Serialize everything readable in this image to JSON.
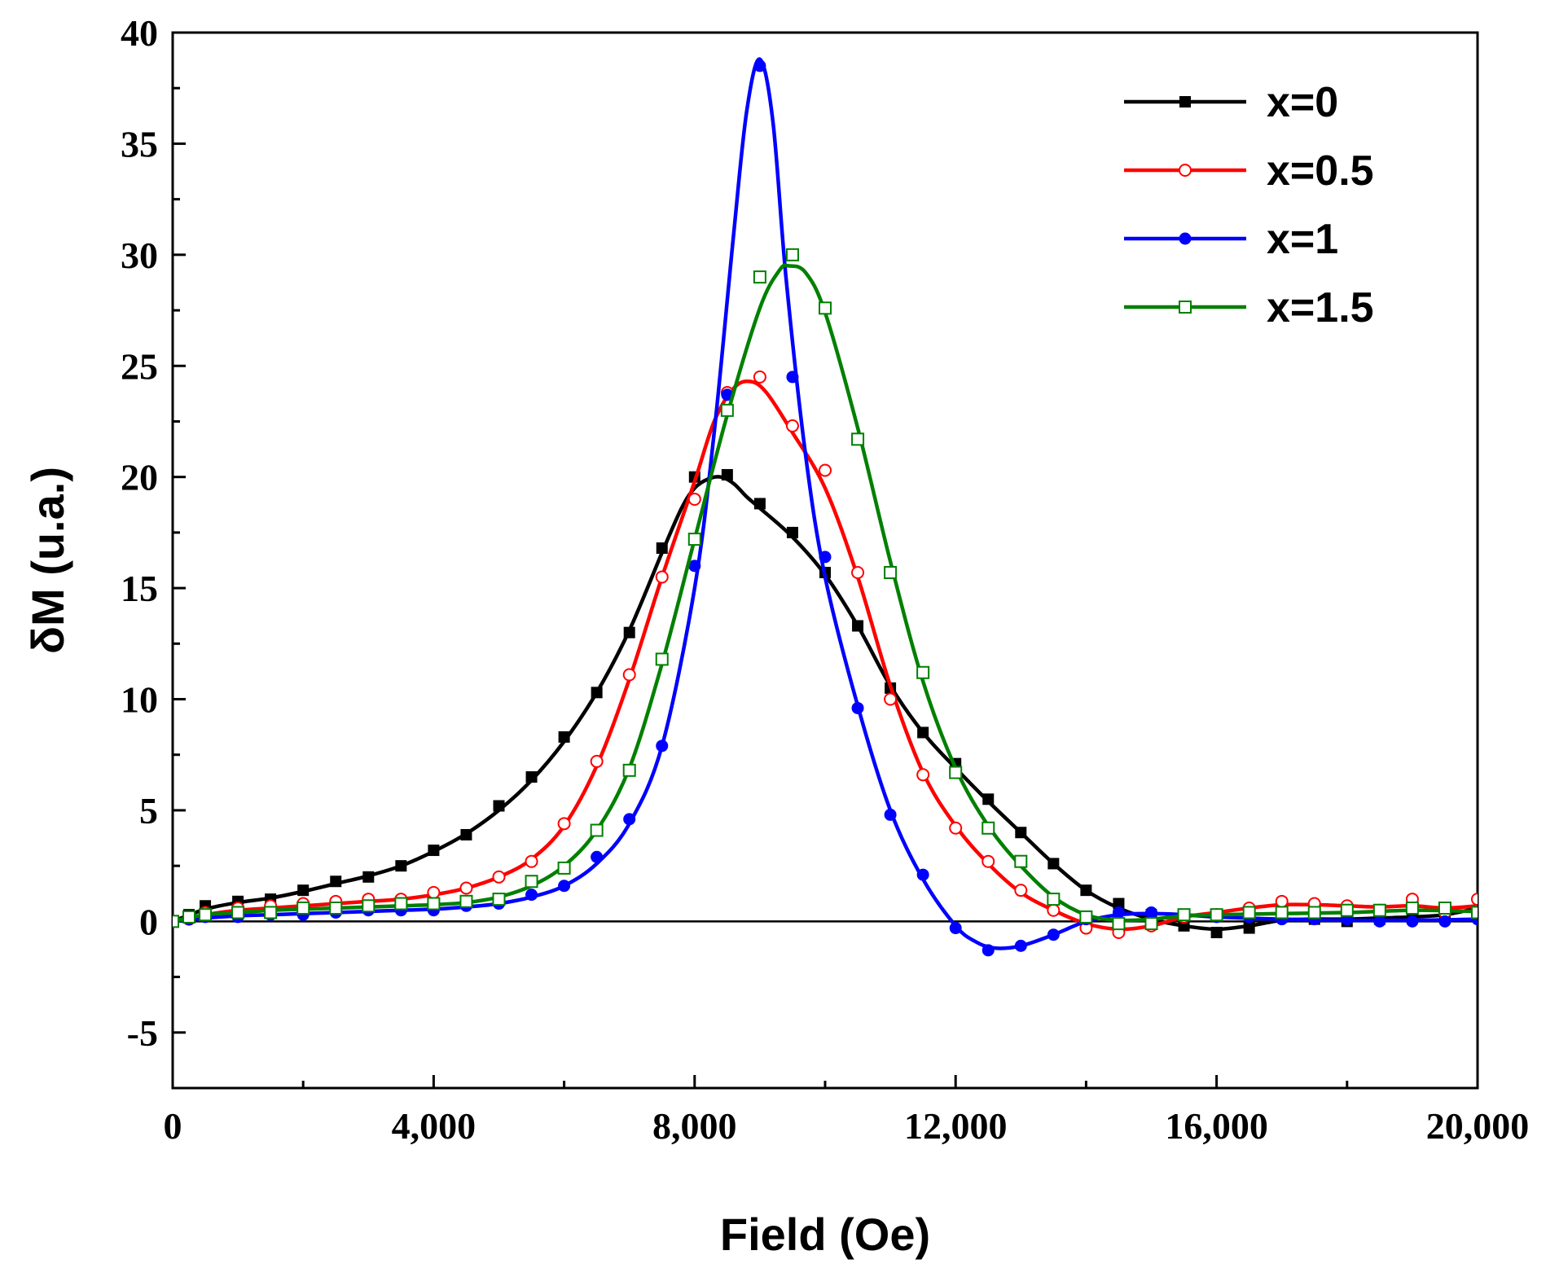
{
  "chart_data": {
    "type": "line",
    "title": "",
    "xlabel": "Field (Oe)",
    "ylabel": "δM (u.a.)",
    "xlim": [
      0,
      20000
    ],
    "ylim": [
      -7.5,
      40
    ],
    "x_ticks": [
      0,
      4000,
      8000,
      12000,
      16000,
      20000
    ],
    "x_tick_labels": [
      "0",
      "4,000",
      "8,000",
      "12,000",
      "16,000",
      "20,000"
    ],
    "y_ticks": [
      -5,
      0,
      5,
      10,
      15,
      20,
      25,
      30,
      35,
      40
    ],
    "y_tick_labels": [
      "-5",
      "0",
      "5",
      "10",
      "15",
      "20",
      "25",
      "30",
      "35",
      "40"
    ],
    "zero_line": true,
    "legend_position": "top-right",
    "series": [
      {
        "name": "x=0",
        "color": "#000000",
        "marker": "filled-square",
        "x": [
          0,
          250,
          500,
          1000,
          1500,
          2000,
          2500,
          3000,
          3500,
          4000,
          4500,
          5000,
          5500,
          6000,
          6500,
          7000,
          7500,
          8000,
          8500,
          9000,
          9500,
          10000,
          10500,
          11000,
          11500,
          12000,
          12500,
          13000,
          13500,
          14000,
          14500,
          15000,
          15500,
          16000,
          16500,
          17000,
          17500,
          18000,
          18500,
          19000,
          19500,
          20000
        ],
        "values": [
          0,
          0.3,
          0.7,
          0.9,
          1.0,
          1.4,
          1.8,
          2.0,
          2.5,
          3.2,
          3.9,
          5.2,
          6.5,
          8.3,
          10.3,
          13.0,
          16.8,
          20.0,
          20.1,
          18.8,
          17.5,
          15.7,
          13.3,
          10.5,
          8.5,
          7.1,
          5.5,
          4.0,
          2.6,
          1.4,
          0.8,
          0.3,
          -0.2,
          -0.5,
          -0.3,
          0.2,
          0.1,
          0.0,
          0.1,
          0.2,
          0.3,
          0.5
        ],
        "curve": [
          [
            0,
            0
          ],
          [
            500,
            0.55
          ],
          [
            1000,
            0.85
          ],
          [
            1500,
            1.05
          ],
          [
            2000,
            1.35
          ],
          [
            2500,
            1.7
          ],
          [
            3000,
            2.05
          ],
          [
            3500,
            2.5
          ],
          [
            4000,
            3.15
          ],
          [
            4500,
            3.95
          ],
          [
            5000,
            5.0
          ],
          [
            5500,
            6.35
          ],
          [
            6000,
            8.1
          ],
          [
            6500,
            10.3
          ],
          [
            7000,
            13.1
          ],
          [
            7500,
            16.6
          ],
          [
            7800,
            18.6
          ],
          [
            8000,
            19.5
          ],
          [
            8200,
            19.9
          ],
          [
            8400,
            20.0
          ],
          [
            8600,
            19.7
          ],
          [
            8800,
            19.1
          ],
          [
            9000,
            18.6
          ],
          [
            9500,
            17.3
          ],
          [
            10000,
            15.6
          ],
          [
            10500,
            13.3
          ],
          [
            11000,
            10.6
          ],
          [
            11500,
            8.5
          ],
          [
            12000,
            6.9
          ],
          [
            12500,
            5.4
          ],
          [
            13000,
            4.0
          ],
          [
            13500,
            2.6
          ],
          [
            14000,
            1.4
          ],
          [
            14500,
            0.6
          ],
          [
            15000,
            0.1
          ],
          [
            15500,
            -0.2
          ],
          [
            16000,
            -0.35
          ],
          [
            16500,
            -0.2
          ],
          [
            17000,
            0.05
          ],
          [
            17500,
            0.1
          ],
          [
            18000,
            0.1
          ],
          [
            18500,
            0.15
          ],
          [
            19000,
            0.2
          ],
          [
            19500,
            0.3
          ],
          [
            20000,
            0.6
          ]
        ]
      },
      {
        "name": "x=0.5",
        "color": "#ff0000",
        "marker": "open-circle",
        "x": [
          0,
          250,
          500,
          1000,
          1500,
          2000,
          2500,
          3000,
          3500,
          4000,
          4500,
          5000,
          5500,
          6000,
          6500,
          7000,
          7500,
          8000,
          8500,
          9000,
          9500,
          10000,
          10500,
          11000,
          11500,
          12000,
          12500,
          13000,
          13500,
          14000,
          14500,
          15000,
          15500,
          16000,
          16500,
          17000,
          17500,
          18000,
          18500,
          19000,
          19500,
          20000
        ],
        "values": [
          0,
          0.1,
          0.4,
          0.6,
          0.7,
          0.8,
          0.9,
          1.0,
          1.0,
          1.3,
          1.5,
          2.0,
          2.7,
          4.4,
          7.2,
          11.1,
          15.5,
          19.0,
          23.8,
          24.5,
          22.3,
          20.3,
          15.7,
          10.0,
          6.6,
          4.2,
          2.7,
          1.4,
          0.5,
          -0.3,
          -0.5,
          -0.2,
          0.2,
          0.3,
          0.6,
          0.9,
          0.8,
          0.7,
          0.5,
          1.0,
          0.4,
          1.0
        ],
        "curve": [
          [
            0,
            0
          ],
          [
            500,
            0.3
          ],
          [
            1000,
            0.5
          ],
          [
            1500,
            0.6
          ],
          [
            2000,
            0.7
          ],
          [
            2500,
            0.8
          ],
          [
            3000,
            0.9
          ],
          [
            3500,
            1.0
          ],
          [
            4000,
            1.2
          ],
          [
            4500,
            1.5
          ],
          [
            5000,
            2.0
          ],
          [
            5500,
            2.8
          ],
          [
            6000,
            4.3
          ],
          [
            6500,
            7.0
          ],
          [
            7000,
            10.9
          ],
          [
            7500,
            15.5
          ],
          [
            8000,
            19.8
          ],
          [
            8300,
            22.5
          ],
          [
            8600,
            24.0
          ],
          [
            8850,
            24.3
          ],
          [
            9100,
            23.8
          ],
          [
            9500,
            22.0
          ],
          [
            10000,
            19.5
          ],
          [
            10500,
            15.5
          ],
          [
            11000,
            10.6
          ],
          [
            11500,
            6.7
          ],
          [
            12000,
            4.3
          ],
          [
            12500,
            2.6
          ],
          [
            13000,
            1.3
          ],
          [
            13500,
            0.5
          ],
          [
            14000,
            -0.1
          ],
          [
            14500,
            -0.35
          ],
          [
            15000,
            -0.2
          ],
          [
            15500,
            0.2
          ],
          [
            16000,
            0.4
          ],
          [
            16500,
            0.6
          ],
          [
            17000,
            0.75
          ],
          [
            17500,
            0.75
          ],
          [
            18000,
            0.7
          ],
          [
            18500,
            0.65
          ],
          [
            19000,
            0.7
          ],
          [
            19500,
            0.6
          ],
          [
            20000,
            0.7
          ]
        ]
      },
      {
        "name": "x=1",
        "color": "#0000ff",
        "marker": "filled-circle",
        "x": [
          0,
          250,
          500,
          1000,
          1500,
          2000,
          2500,
          3000,
          3500,
          4000,
          4500,
          5000,
          5500,
          6000,
          6500,
          7000,
          7500,
          8000,
          8500,
          9000,
          9500,
          10000,
          10500,
          11000,
          11500,
          12000,
          12500,
          13000,
          13500,
          14000,
          14500,
          15000,
          15500,
          16000,
          16500,
          17000,
          17500,
          18000,
          18500,
          19000,
          19500,
          20000
        ],
        "values": [
          0,
          0.1,
          0.2,
          0.2,
          0.3,
          0.3,
          0.4,
          0.5,
          0.5,
          0.5,
          0.7,
          0.8,
          1.2,
          1.6,
          2.9,
          4.6,
          7.9,
          16.0,
          23.7,
          38.5,
          24.5,
          16.4,
          9.6,
          4.8,
          2.1,
          -0.3,
          -1.3,
          -1.1,
          -0.6,
          0.1,
          0.4,
          0.4,
          0.3,
          0.2,
          0.2,
          0.1,
          0.1,
          0.1,
          0.0,
          0.0,
          0.0,
          0.1
        ],
        "curve": [
          [
            0,
            0
          ],
          [
            500,
            0.15
          ],
          [
            1000,
            0.25
          ],
          [
            1500,
            0.3
          ],
          [
            2000,
            0.35
          ],
          [
            2500,
            0.4
          ],
          [
            3000,
            0.45
          ],
          [
            3500,
            0.5
          ],
          [
            4000,
            0.55
          ],
          [
            4500,
            0.65
          ],
          [
            5000,
            0.8
          ],
          [
            5500,
            1.1
          ],
          [
            6000,
            1.6
          ],
          [
            6500,
            2.6
          ],
          [
            7000,
            4.4
          ],
          [
            7500,
            7.9
          ],
          [
            8000,
            15.0
          ],
          [
            8300,
            22.0
          ],
          [
            8600,
            31.0
          ],
          [
            8800,
            36.5
          ],
          [
            9000,
            38.8
          ],
          [
            9200,
            36.0
          ],
          [
            9400,
            29.0
          ],
          [
            9700,
            21.0
          ],
          [
            10000,
            15.5
          ],
          [
            10500,
            9.7
          ],
          [
            11000,
            5.0
          ],
          [
            11500,
            1.9
          ],
          [
            12000,
            -0.2
          ],
          [
            12300,
            -0.9
          ],
          [
            12600,
            -1.2
          ],
          [
            13000,
            -1.1
          ],
          [
            13500,
            -0.6
          ],
          [
            14000,
            0.0
          ],
          [
            14500,
            0.3
          ],
          [
            15000,
            0.35
          ],
          [
            15500,
            0.3
          ],
          [
            16000,
            0.2
          ],
          [
            17000,
            0.1
          ],
          [
            18000,
            0.05
          ],
          [
            19000,
            0.05
          ],
          [
            20000,
            0.1
          ]
        ]
      },
      {
        "name": "x=1.5",
        "color": "#008000",
        "marker": "open-square",
        "x": [
          0,
          250,
          500,
          1000,
          1500,
          2000,
          2500,
          3000,
          3500,
          4000,
          4500,
          5000,
          5500,
          6000,
          6500,
          7000,
          7500,
          8000,
          8500,
          9000,
          9500,
          10000,
          10500,
          11000,
          11500,
          12000,
          12500,
          13000,
          13500,
          14000,
          14500,
          15000,
          15500,
          16000,
          16500,
          17000,
          17500,
          18000,
          18500,
          19000,
          19500,
          20000
        ],
        "values": [
          0,
          0.2,
          0.3,
          0.4,
          0.4,
          0.6,
          0.6,
          0.7,
          0.8,
          0.8,
          0.9,
          1.0,
          1.8,
          2.4,
          4.1,
          6.8,
          11.8,
          17.2,
          23.0,
          29.0,
          30.0,
          27.6,
          21.7,
          15.7,
          11.2,
          6.7,
          4.2,
          2.7,
          1.0,
          0.2,
          -0.1,
          -0.1,
          0.3,
          0.3,
          0.4,
          0.4,
          0.4,
          0.5,
          0.5,
          0.6,
          0.6,
          0.4
        ],
        "curve": [
          [
            0,
            0
          ],
          [
            500,
            0.3
          ],
          [
            1000,
            0.4
          ],
          [
            1500,
            0.5
          ],
          [
            2000,
            0.55
          ],
          [
            2500,
            0.6
          ],
          [
            3000,
            0.65
          ],
          [
            3500,
            0.7
          ],
          [
            4000,
            0.75
          ],
          [
            4500,
            0.85
          ],
          [
            5000,
            1.1
          ],
          [
            5500,
            1.6
          ],
          [
            6000,
            2.5
          ],
          [
            6500,
            4.1
          ],
          [
            7000,
            6.9
          ],
          [
            7500,
            11.6
          ],
          [
            8000,
            17.2
          ],
          [
            8500,
            22.8
          ],
          [
            9000,
            27.6
          ],
          [
            9300,
            29.3
          ],
          [
            9450,
            29.5
          ],
          [
            9700,
            29.2
          ],
          [
            10000,
            27.4
          ],
          [
            10500,
            22.2
          ],
          [
            11000,
            16.2
          ],
          [
            11500,
            10.8
          ],
          [
            12000,
            6.9
          ],
          [
            12500,
            4.3
          ],
          [
            13000,
            2.5
          ],
          [
            13500,
            1.1
          ],
          [
            14000,
            0.3
          ],
          [
            14500,
            0.05
          ],
          [
            15000,
            0.1
          ],
          [
            15500,
            0.25
          ],
          [
            16000,
            0.3
          ],
          [
            17000,
            0.35
          ],
          [
            18000,
            0.4
          ],
          [
            19000,
            0.5
          ],
          [
            20000,
            0.45
          ]
        ]
      }
    ]
  }
}
